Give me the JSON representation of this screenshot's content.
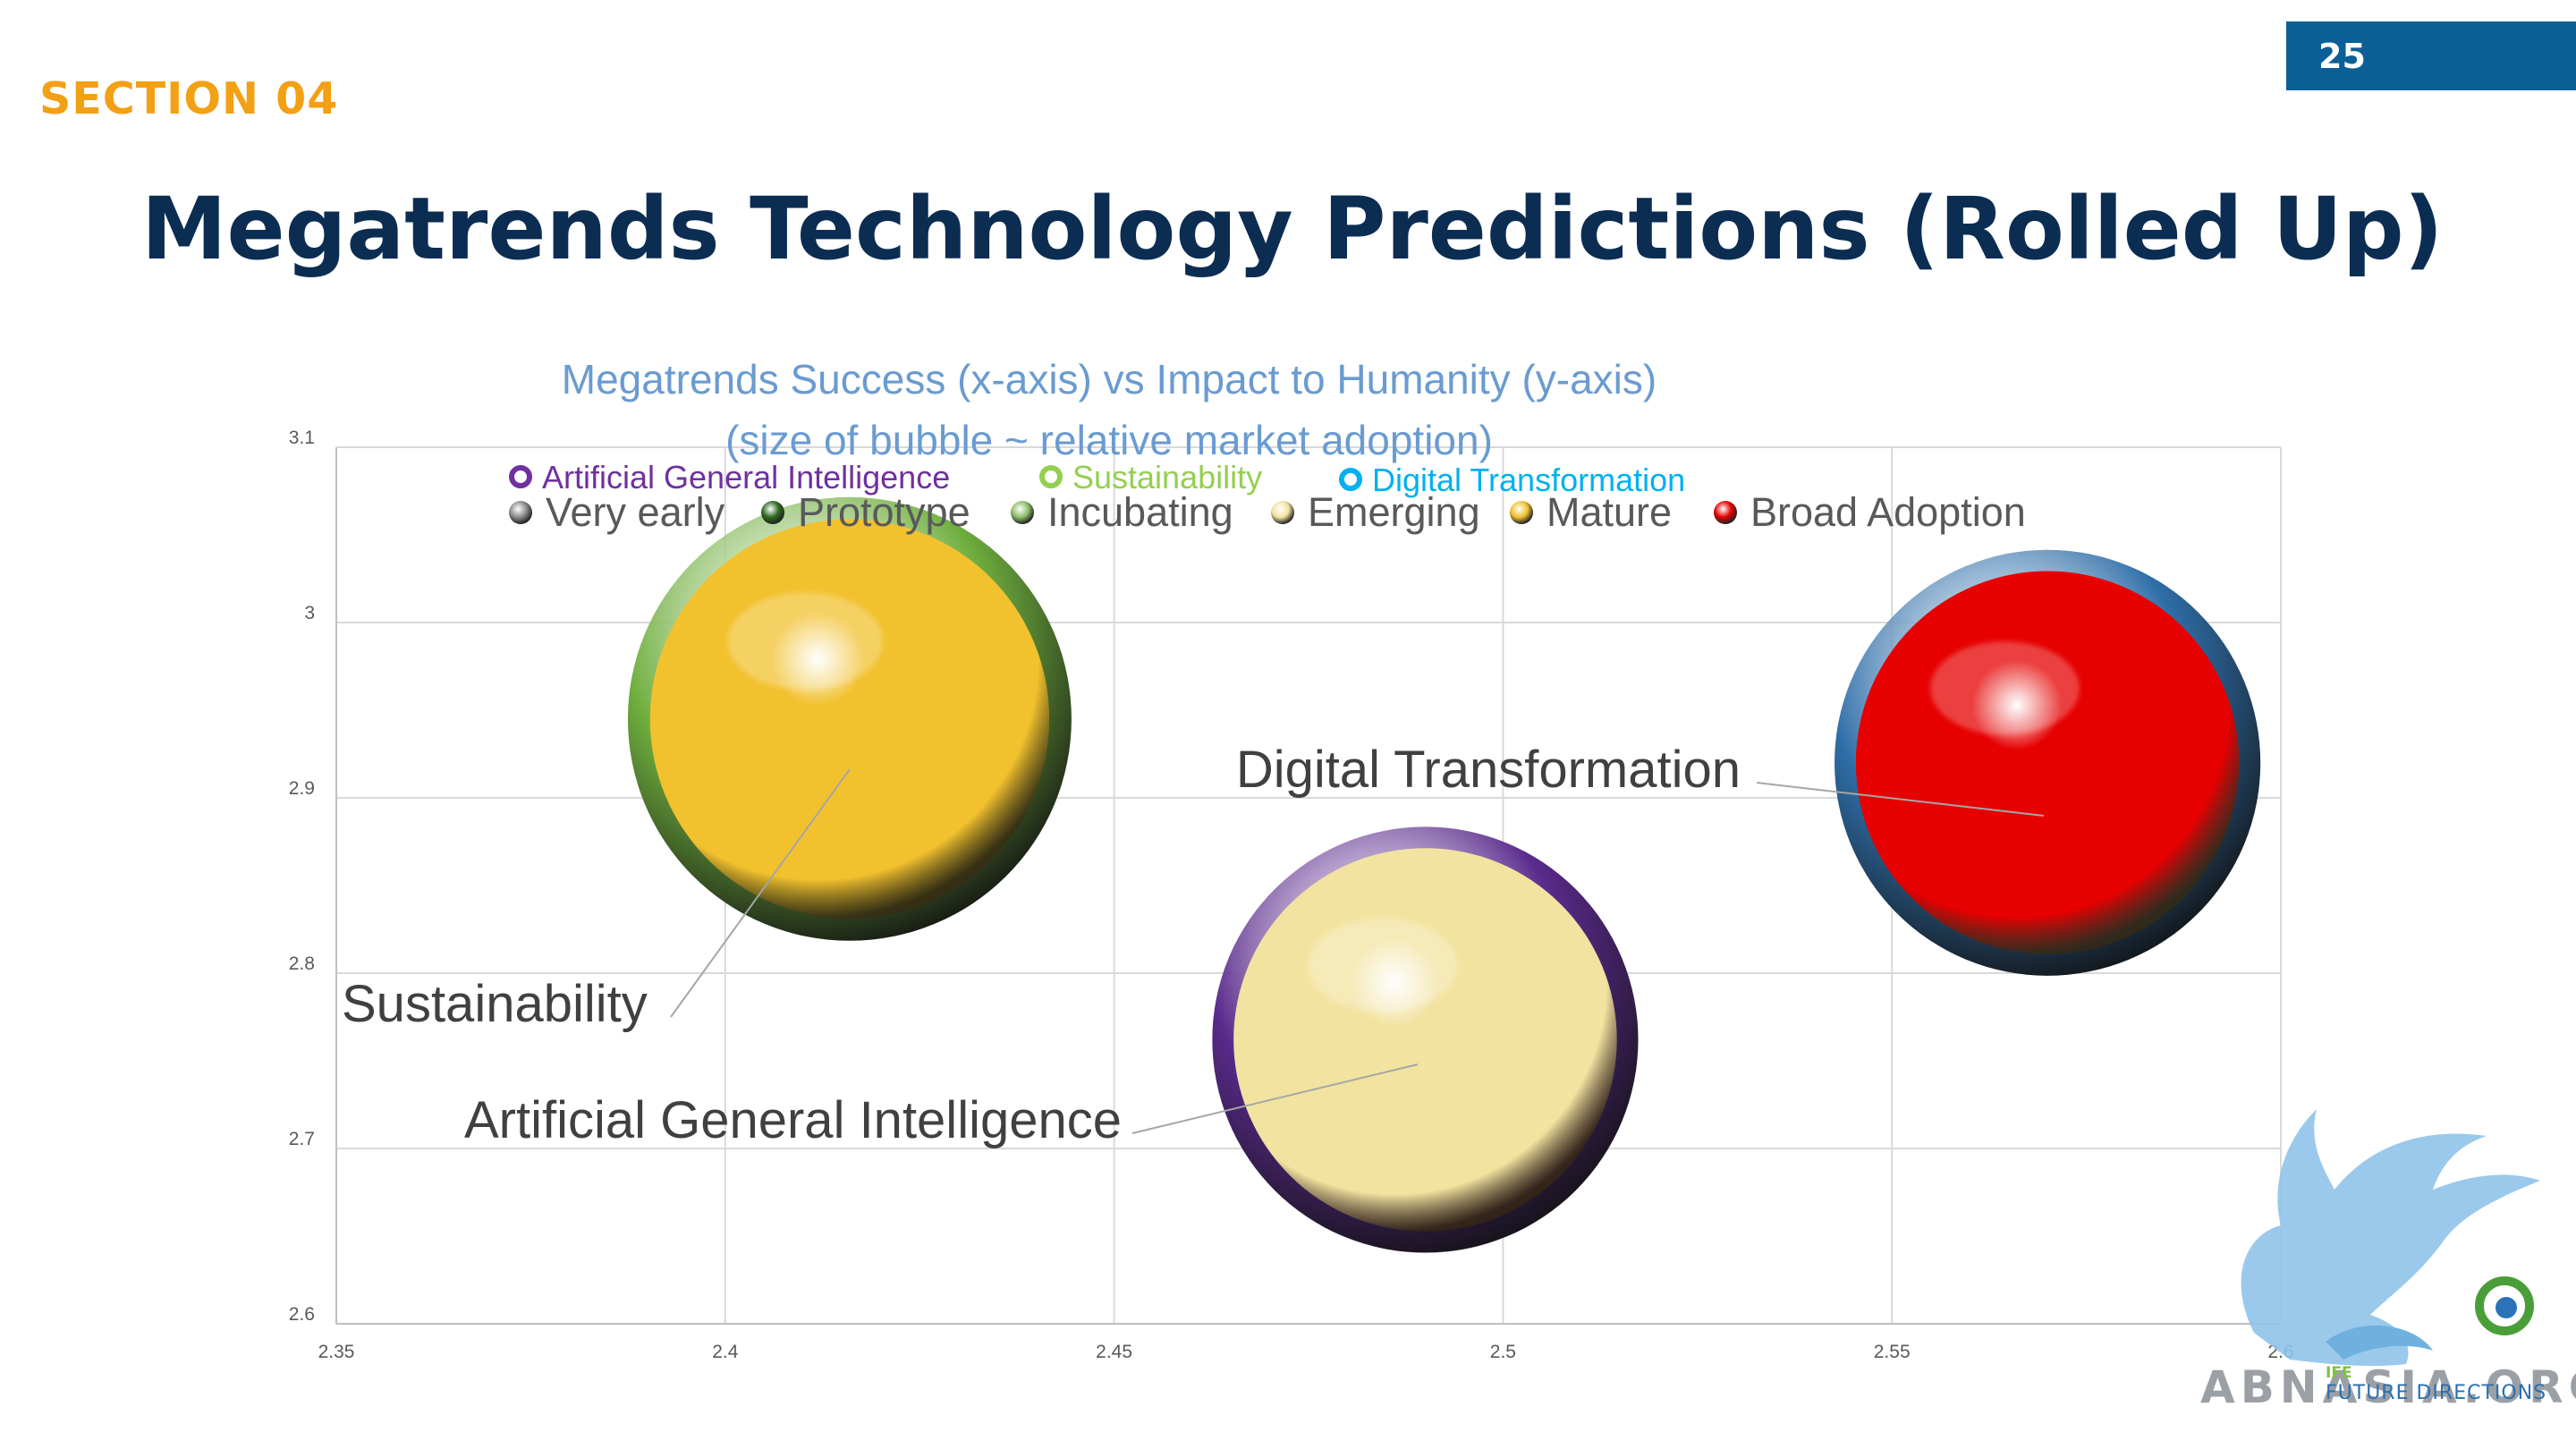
{
  "page": {
    "number": "25",
    "section": "SECTION 04",
    "title": "Megatrends Technology Predictions (Rolled Up)"
  },
  "chart_data": {
    "type": "bubble",
    "title": "Megatrends Success (x-axis) vs Impact to Humanity (y-axis)",
    "subtitle": "(size of bubble ~ relative market adoption)",
    "xlim": [
      2.35,
      2.6
    ],
    "ylim": [
      2.6,
      3.1
    ],
    "x_ticks": [
      "2.35",
      "2.4",
      "2.45",
      "2.5",
      "2.55",
      "2.6"
    ],
    "y_ticks": [
      "2.6",
      "2.7",
      "2.8",
      "2.9",
      "3",
      "3.1"
    ],
    "grid": true,
    "series_legend": [
      {
        "name": "Artificial General Intelligence",
        "color": "#7030a0"
      },
      {
        "name": "Sustainability",
        "color": "#92d050"
      },
      {
        "name": "Digital Transformation",
        "color": "#00b0f0"
      }
    ],
    "stage_legend": [
      {
        "name": "Very early",
        "color": "#8c8c8c"
      },
      {
        "name": "Prototype",
        "color": "#2e6b1f"
      },
      {
        "name": "Incubating",
        "color": "#8fbf6a"
      },
      {
        "name": "Emerging",
        "color": "#f3e3a0"
      },
      {
        "name": "Mature",
        "color": "#f2c12e"
      },
      {
        "name": "Broad Adoption",
        "color": "#e60000"
      }
    ],
    "bubbles": [
      {
        "name": "Sustainability",
        "label": "Sustainability",
        "x": 2.416,
        "y": 2.945,
        "size": 1.0,
        "stage": "Mature",
        "ring": "#6fae3e",
        "fill": "#f2c12e"
      },
      {
        "name": "Artificial General Intelligence",
        "label": "Artificial General Intelligence",
        "x": 2.49,
        "y": 2.762,
        "size": 0.96,
        "stage": "Emerging",
        "ring": "#5a2a8c",
        "fill": "#f3e3a0"
      },
      {
        "name": "Digital Transformation",
        "label": "Digital Transformation",
        "x": 2.57,
        "y": 2.92,
        "size": 0.96,
        "stage": "Broad Adoption",
        "ring": "#2f6ea8",
        "fill": "#e60000"
      }
    ]
  },
  "logo": {
    "text": "ABNASIA.ORG",
    "sub1": "IFE",
    "sub2": "FUTURE DIRECTIONS"
  }
}
